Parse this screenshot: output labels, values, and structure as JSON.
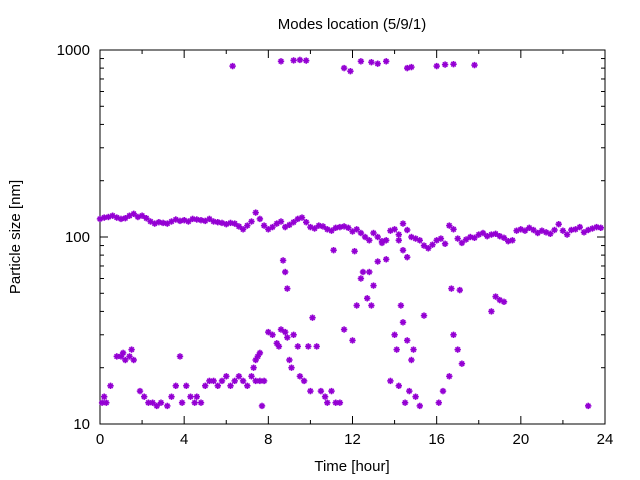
{
  "chart_data": {
    "type": "scatter",
    "title": "Modes location (5/9/1)",
    "xlabel": "Time [hour]",
    "ylabel": "Particle size [nm]",
    "xlim": [
      0,
      24
    ],
    "ylim": [
      10,
      1000
    ],
    "yscale": "log",
    "grid": false,
    "marker_color": "#9400d3",
    "x_ticks": [
      0,
      4,
      8,
      12,
      16,
      20,
      24
    ],
    "x_tick_labels": [
      "0",
      "4",
      "8",
      "12",
      "16",
      "20",
      "24"
    ],
    "y_ticks": [
      10,
      100,
      1000
    ],
    "y_tick_labels": [
      "10",
      "100",
      "1000"
    ],
    "series": [
      {
        "name": "",
        "points": [
          [
            0.0,
            125
          ],
          [
            0.2,
            127
          ],
          [
            0.4,
            128
          ],
          [
            0.6,
            130
          ],
          [
            0.8,
            127
          ],
          [
            1.0,
            125
          ],
          [
            1.2,
            126
          ],
          [
            1.4,
            130
          ],
          [
            1.6,
            133
          ],
          [
            1.8,
            128
          ],
          [
            2.0,
            130
          ],
          [
            2.2,
            126
          ],
          [
            2.4,
            121
          ],
          [
            2.6,
            118
          ],
          [
            2.8,
            120
          ],
          [
            3.0,
            119
          ],
          [
            3.2,
            118
          ],
          [
            3.4,
            121
          ],
          [
            3.6,
            124
          ],
          [
            3.8,
            122
          ],
          [
            4.0,
            123
          ],
          [
            4.2,
            121
          ],
          [
            4.4,
            125
          ],
          [
            4.6,
            124
          ],
          [
            4.8,
            123
          ],
          [
            5.0,
            122
          ],
          [
            5.2,
            125
          ],
          [
            5.4,
            121
          ],
          [
            5.6,
            120
          ],
          [
            5.8,
            119
          ],
          [
            6.0,
            117
          ],
          [
            6.2,
            119
          ],
          [
            6.4,
            118
          ],
          [
            6.6,
            114
          ],
          [
            6.8,
            110
          ],
          [
            7.0,
            115
          ],
          [
            7.2,
            121
          ],
          [
            7.4,
            135
          ],
          [
            7.6,
            125
          ],
          [
            7.8,
            115
          ],
          [
            8.0,
            110
          ],
          [
            8.2,
            113
          ],
          [
            8.4,
            118
          ],
          [
            8.6,
            121
          ],
          [
            8.8,
            113
          ],
          [
            9.0,
            116
          ],
          [
            9.2,
            120
          ],
          [
            9.4,
            125
          ],
          [
            9.6,
            127
          ],
          [
            9.8,
            120
          ],
          [
            10.0,
            113
          ],
          [
            10.2,
            111
          ],
          [
            10.4,
            115
          ],
          [
            10.6,
            114
          ],
          [
            10.8,
            110
          ],
          [
            11.0,
            108
          ],
          [
            11.2,
            112
          ],
          [
            11.4,
            113
          ],
          [
            11.6,
            114
          ],
          [
            11.8,
            112
          ],
          [
            12.0,
            107
          ],
          [
            12.2,
            110
          ],
          [
            12.4,
            105
          ],
          [
            12.6,
            100
          ],
          [
            12.8,
            96
          ],
          [
            13.0,
            105
          ],
          [
            13.2,
            100
          ],
          [
            13.4,
            95
          ],
          [
            13.6,
            96
          ],
          [
            13.8,
            108
          ],
          [
            14.0,
            110
          ],
          [
            14.2,
            103
          ],
          [
            14.4,
            118
          ],
          [
            14.6,
            109
          ],
          [
            14.8,
            100
          ],
          [
            15.0,
            98
          ],
          [
            15.2,
            96
          ],
          [
            15.4,
            90
          ],
          [
            15.6,
            87
          ],
          [
            15.8,
            91
          ],
          [
            16.0,
            96
          ],
          [
            16.2,
            98
          ],
          [
            16.4,
            92
          ],
          [
            16.6,
            115
          ],
          [
            16.8,
            110
          ],
          [
            17.0,
            98
          ],
          [
            17.2,
            93
          ],
          [
            17.4,
            97
          ],
          [
            17.6,
            100
          ],
          [
            17.8,
            99
          ],
          [
            18.0,
            103
          ],
          [
            18.2,
            105
          ],
          [
            18.4,
            101
          ],
          [
            18.6,
            103
          ],
          [
            18.8,
            104
          ],
          [
            19.0,
            101
          ],
          [
            19.2,
            99
          ],
          [
            19.4,
            95
          ],
          [
            19.6,
            96
          ],
          [
            19.8,
            108
          ],
          [
            20.0,
            110
          ],
          [
            20.2,
            108
          ],
          [
            20.4,
            112
          ],
          [
            20.6,
            109
          ],
          [
            20.8,
            105
          ],
          [
            21.0,
            108
          ],
          [
            21.2,
            106
          ],
          [
            21.4,
            104
          ],
          [
            21.6,
            109
          ],
          [
            21.8,
            117
          ],
          [
            22.0,
            108
          ],
          [
            22.2,
            103
          ],
          [
            22.4,
            109
          ],
          [
            22.6,
            110
          ],
          [
            22.8,
            113
          ],
          [
            23.0,
            106
          ],
          [
            23.2,
            109
          ],
          [
            23.4,
            111
          ],
          [
            23.6,
            113
          ],
          [
            23.8,
            112
          ],
          [
            6.3,
            820
          ],
          [
            8.6,
            870
          ],
          [
            9.2,
            880
          ],
          [
            9.5,
            885
          ],
          [
            9.8,
            878
          ],
          [
            11.6,
            800
          ],
          [
            11.9,
            770
          ],
          [
            12.4,
            870
          ],
          [
            12.9,
            860
          ],
          [
            13.2,
            845
          ],
          [
            13.6,
            870
          ],
          [
            14.6,
            800
          ],
          [
            14.8,
            810
          ],
          [
            16.0,
            820
          ],
          [
            16.4,
            835
          ],
          [
            16.8,
            840
          ],
          [
            17.8,
            830
          ],
          [
            0.1,
            13
          ],
          [
            0.2,
            14
          ],
          [
            0.3,
            13
          ],
          [
            0.5,
            16
          ],
          [
            0.8,
            23
          ],
          [
            1.0,
            23
          ],
          [
            1.1,
            24
          ],
          [
            1.2,
            22
          ],
          [
            1.4,
            23
          ],
          [
            1.5,
            25
          ],
          [
            1.6,
            22
          ],
          [
            1.9,
            15
          ],
          [
            2.1,
            14
          ],
          [
            2.3,
            13
          ],
          [
            2.5,
            13
          ],
          [
            2.7,
            12.5
          ],
          [
            2.9,
            13
          ],
          [
            3.2,
            12.5
          ],
          [
            3.4,
            14
          ],
          [
            3.6,
            16
          ],
          [
            3.8,
            23
          ],
          [
            3.9,
            13
          ],
          [
            4.1,
            16
          ],
          [
            4.3,
            14
          ],
          [
            4.5,
            13
          ],
          [
            4.6,
            14
          ],
          [
            4.8,
            13
          ],
          [
            5.0,
            16
          ],
          [
            5.2,
            17
          ],
          [
            5.4,
            17
          ],
          [
            5.6,
            16
          ],
          [
            5.8,
            17
          ],
          [
            6.0,
            18
          ],
          [
            6.2,
            16
          ],
          [
            6.4,
            17
          ],
          [
            6.6,
            18
          ],
          [
            6.8,
            17
          ],
          [
            7.0,
            16
          ],
          [
            7.2,
            18
          ],
          [
            7.4,
            17
          ],
          [
            7.6,
            17
          ],
          [
            7.7,
            12.5
          ],
          [
            7.8,
            17
          ],
          [
            7.3,
            20
          ],
          [
            7.4,
            22
          ],
          [
            7.5,
            23
          ],
          [
            7.6,
            24
          ],
          [
            8.0,
            31
          ],
          [
            8.2,
            30
          ],
          [
            8.4,
            27
          ],
          [
            8.5,
            26
          ],
          [
            8.6,
            32
          ],
          [
            8.8,
            31
          ],
          [
            8.9,
            29
          ],
          [
            9.0,
            22
          ],
          [
            9.1,
            20
          ],
          [
            9.2,
            30
          ],
          [
            9.4,
            26
          ],
          [
            9.5,
            18
          ],
          [
            9.7,
            17
          ],
          [
            9.9,
            26
          ],
          [
            10.0,
            15
          ],
          [
            10.1,
            37
          ],
          [
            10.3,
            26
          ],
          [
            10.5,
            15
          ],
          [
            10.7,
            14
          ],
          [
            10.8,
            13
          ],
          [
            11.0,
            15
          ],
          [
            11.2,
            13
          ],
          [
            11.4,
            13
          ],
          [
            11.6,
            32
          ],
          [
            12.0,
            28
          ],
          [
            12.2,
            43
          ],
          [
            12.4,
            60
          ],
          [
            12.5,
            65
          ],
          [
            12.7,
            47
          ],
          [
            12.9,
            43
          ],
          [
            13.0,
            55
          ],
          [
            13.2,
            74
          ],
          [
            13.4,
            93
          ],
          [
            13.6,
            76
          ],
          [
            13.8,
            17
          ],
          [
            14.0,
            30
          ],
          [
            14.1,
            25
          ],
          [
            14.2,
            16
          ],
          [
            14.3,
            43
          ],
          [
            14.4,
            35
          ],
          [
            14.5,
            13
          ],
          [
            14.6,
            28
          ],
          [
            14.7,
            15
          ],
          [
            14.8,
            22
          ],
          [
            14.9,
            25
          ],
          [
            15.0,
            14
          ],
          [
            15.2,
            12.5
          ],
          [
            15.4,
            38
          ],
          [
            16.1,
            13
          ],
          [
            16.3,
            15
          ],
          [
            16.6,
            18
          ],
          [
            16.8,
            30
          ],
          [
            17.0,
            25
          ],
          [
            17.2,
            21
          ],
          [
            16.7,
            53
          ],
          [
            17.1,
            52
          ],
          [
            8.7,
            75
          ],
          [
            8.8,
            65
          ],
          [
            8.9,
            53
          ],
          [
            11.1,
            85
          ],
          [
            12.1,
            84
          ],
          [
            12.8,
            65
          ],
          [
            14.2,
            96
          ],
          [
            14.4,
            85
          ],
          [
            14.6,
            78
          ],
          [
            18.6,
            40
          ],
          [
            18.8,
            48
          ],
          [
            19.0,
            46
          ],
          [
            19.2,
            45
          ],
          [
            23.2,
            12.5
          ]
        ]
      }
    ]
  }
}
